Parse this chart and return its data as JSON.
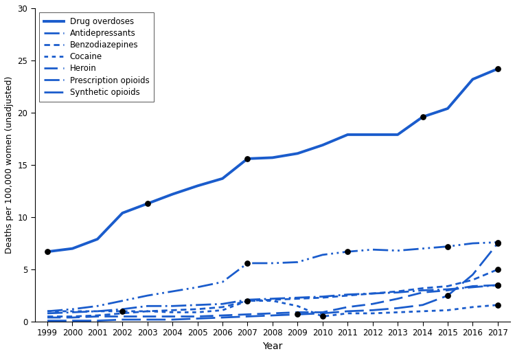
{
  "years": [
    1999,
    2000,
    2001,
    2002,
    2003,
    2004,
    2005,
    2006,
    2007,
    2008,
    2009,
    2010,
    2011,
    2012,
    2013,
    2014,
    2015,
    2016,
    2017
  ],
  "drug_overdoses": [
    6.7,
    7.0,
    7.9,
    10.4,
    11.3,
    12.2,
    13.0,
    13.7,
    15.6,
    15.7,
    16.1,
    16.9,
    17.9,
    17.9,
    17.9,
    19.6,
    20.4,
    23.2,
    24.2
  ],
  "antidepressants": [
    0.8,
    0.9,
    1.0,
    1.2,
    1.5,
    1.5,
    1.6,
    1.7,
    2.1,
    2.2,
    2.3,
    2.4,
    2.6,
    2.7,
    2.8,
    3.0,
    3.1,
    3.3,
    3.5
  ],
  "benzodiazepines": [
    0.5,
    0.5,
    0.6,
    0.8,
    1.0,
    1.1,
    1.2,
    1.4,
    2.0,
    2.1,
    2.2,
    2.3,
    2.5,
    2.7,
    2.9,
    3.2,
    3.4,
    4.0,
    5.0
  ],
  "cocaine": [
    1.0,
    1.0,
    1.0,
    1.0,
    1.0,
    0.9,
    0.9,
    1.1,
    2.0,
    2.0,
    1.5,
    0.5,
    0.8,
    0.8,
    0.9,
    1.0,
    1.1,
    1.4,
    1.6
  ],
  "heroin": [
    0.4,
    0.4,
    0.5,
    0.5,
    0.5,
    0.5,
    0.5,
    0.6,
    0.7,
    0.8,
    0.9,
    0.9,
    1.4,
    1.7,
    2.2,
    2.8,
    3.0,
    3.4,
    3.5
  ],
  "prescription_opioids": [
    1.0,
    1.2,
    1.5,
    2.0,
    2.5,
    2.9,
    3.3,
    3.8,
    5.6,
    5.6,
    5.7,
    6.4,
    6.7,
    6.9,
    6.8,
    7.0,
    7.2,
    7.5,
    7.6
  ],
  "synthetic_opioids": [
    0.1,
    0.1,
    0.1,
    0.2,
    0.2,
    0.2,
    0.3,
    0.4,
    0.5,
    0.6,
    0.7,
    0.8,
    1.0,
    1.1,
    1.3,
    1.6,
    2.5,
    4.5,
    7.5
  ],
  "dot_years_overdoses": [
    1999,
    2003,
    2007,
    2014,
    2017
  ],
  "dot_values_overdoses": [
    6.7,
    11.3,
    15.6,
    19.6,
    24.2
  ],
  "dot_years_antidepressants": [
    2017
  ],
  "dot_values_antidepressants": [
    3.5
  ],
  "dot_years_benzodiazepines": [
    2017
  ],
  "dot_values_benzodiazepines": [
    5.0
  ],
  "dot_years_cocaine": [
    2002,
    2007,
    2010,
    2017
  ],
  "dot_values_cocaine": [
    1.0,
    2.0,
    0.5,
    1.6
  ],
  "dot_years_heroin": [
    2017
  ],
  "dot_values_heroin": [
    3.5
  ],
  "dot_years_prescription": [
    2007,
    2011,
    2015,
    2017
  ],
  "dot_values_prescription": [
    5.6,
    6.7,
    7.2,
    7.6
  ],
  "dot_years_synthetic": [
    2009,
    2015,
    2017
  ],
  "dot_values_synthetic": [
    0.7,
    2.5,
    7.5
  ],
  "color": "#1a5ccc",
  "ylabel": "Deaths per 100,000 women (unadjusted)",
  "xlabel": "Year",
  "ylim": [
    0,
    30
  ],
  "yticks": [
    0,
    5,
    10,
    15,
    20,
    25,
    30
  ],
  "background_color": "#ffffff",
  "lw_main": 2.8,
  "lw_sub": 2.0
}
